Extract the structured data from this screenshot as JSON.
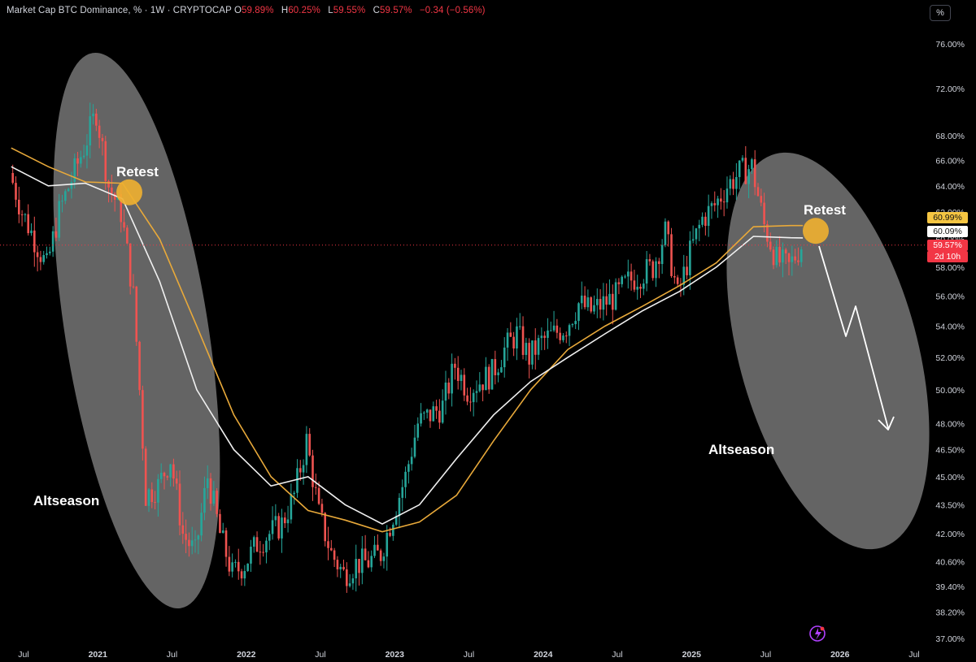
{
  "header": {
    "title": "Market Cap BTC Dominance, % · 1W · CRYPTOCAP",
    "open_label": "O",
    "open": "59.89%",
    "high_label": "H",
    "high": "60.25%",
    "low_label": "L",
    "low": "59.55%",
    "close_label": "C",
    "close": "59.57%",
    "change": "−0.34 (−0.56%)"
  },
  "scale_button": "%",
  "price_tags": {
    "ma_orange": "60.99%",
    "ma_white": "60.09%",
    "last": "59.57%",
    "countdown": "2d 10h"
  },
  "annotations": {
    "retest_left": "Retest",
    "retest_right": "Retest",
    "altseason_left": "Altseason",
    "altseason_right": "Altseason"
  },
  "colors": {
    "up": "#26a69a",
    "down": "#ef5350",
    "ma_orange": "#e8a93a",
    "ma_white": "#f0f0f0",
    "ellipse": "#8a8a8a",
    "retest_marker": "#f0b030"
  },
  "chart_data": {
    "type": "line",
    "title": "Market Cap BTC Dominance, % · 1W · CRYPTOCAP",
    "scale": "log",
    "ylim": [
      36.5,
      78.5
    ],
    "y_ticks": [
      "76.00%",
      "72.00%",
      "68.00%",
      "66.00%",
      "64.00%",
      "62.00%",
      "60.00%",
      "58.00%",
      "56.00%",
      "54.00%",
      "52.00%",
      "50.00%",
      "48.00%",
      "46.50%",
      "45.00%",
      "43.50%",
      "42.00%",
      "40.60%",
      "39.40%",
      "38.20%",
      "37.00%"
    ],
    "x_ticks": [
      "Jul",
      "2021",
      "Jul",
      "2022",
      "Jul",
      "2023",
      "Jul",
      "2024",
      "Jul",
      "2025",
      "Jul",
      "2026",
      "Jul"
    ],
    "grid": false,
    "series": [
      {
        "values_kind": "weekly closes (approx)",
        "points": [
          [
            "2020-06",
            65.0
          ],
          [
            "2020-07",
            62.0
          ],
          [
            "2020-08",
            60.0
          ],
          [
            "2020-09",
            58.0
          ],
          [
            "2020-10",
            62.0
          ],
          [
            "2020-11",
            64.5
          ],
          [
            "2020-12",
            67.0
          ],
          [
            "2021-01",
            70.0
          ],
          [
            "2021-02",
            64.0
          ],
          [
            "2021-03",
            62.0
          ],
          [
            "2021-04",
            56.0
          ],
          [
            "2021-05",
            44.0
          ],
          [
            "2021-06",
            44.5
          ],
          [
            "2021-07",
            46.0
          ],
          [
            "2021-08",
            42.0
          ],
          [
            "2021-09",
            41.0
          ],
          [
            "2021-10",
            45.0
          ],
          [
            "2021-11",
            42.0
          ],
          [
            "2021-12",
            40.0
          ],
          [
            "2022-01",
            40.5
          ],
          [
            "2022-02",
            41.5
          ],
          [
            "2022-03",
            42.0
          ],
          [
            "2022-04",
            42.5
          ],
          [
            "2022-05",
            44.0
          ],
          [
            "2022-06",
            47.0
          ],
          [
            "2022-07",
            43.0
          ],
          [
            "2022-08",
            41.0
          ],
          [
            "2022-09",
            40.0
          ],
          [
            "2022-10",
            40.5
          ],
          [
            "2022-11",
            40.6
          ],
          [
            "2022-12",
            41.0
          ],
          [
            "2023-01",
            43.0
          ],
          [
            "2023-02",
            45.0
          ],
          [
            "2023-03",
            48.0
          ],
          [
            "2023-04",
            48.5
          ],
          [
            "2023-05",
            49.0
          ],
          [
            "2023-06",
            51.5
          ],
          [
            "2023-07",
            50.0
          ],
          [
            "2023-08",
            50.5
          ],
          [
            "2023-09",
            51.0
          ],
          [
            "2023-10",
            52.5
          ],
          [
            "2023-11",
            53.5
          ],
          [
            "2023-12",
            52.0
          ],
          [
            "2024-01",
            53.0
          ],
          [
            "2024-02",
            53.5
          ],
          [
            "2024-03",
            54.0
          ],
          [
            "2024-04",
            55.5
          ],
          [
            "2024-05",
            55.0
          ],
          [
            "2024-06",
            55.5
          ],
          [
            "2024-07",
            56.0
          ],
          [
            "2024-08",
            57.0
          ],
          [
            "2024-09",
            57.5
          ],
          [
            "2024-10",
            58.0
          ],
          [
            "2024-11",
            60.5
          ],
          [
            "2024-12",
            56.0
          ],
          [
            "2025-01",
            59.0
          ],
          [
            "2025-02",
            61.5
          ],
          [
            "2025-03",
            62.5
          ],
          [
            "2025-04",
            64.0
          ],
          [
            "2025-05",
            65.0
          ],
          [
            "2025-06",
            65.5
          ],
          [
            "2025-07",
            61.0
          ],
          [
            "2025-08",
            58.5
          ],
          [
            "2025-09",
            58.0
          ],
          [
            "2025-10",
            59.57
          ]
        ]
      },
      {
        "name_color": "white-ma",
        "points": [
          [
            "2020-06",
            65.5
          ],
          [
            "2020-09",
            64.0
          ],
          [
            "2020-12",
            64.2
          ],
          [
            "2021-03",
            63.0
          ],
          [
            "2021-06",
            57.0
          ],
          [
            "2021-09",
            50.0
          ],
          [
            "2021-12",
            46.5
          ],
          [
            "2022-03",
            44.5
          ],
          [
            "2022-06",
            45.0
          ],
          [
            "2022-09",
            43.5
          ],
          [
            "2022-12",
            42.5
          ],
          [
            "2023-03",
            43.5
          ],
          [
            "2023-06",
            46.0
          ],
          [
            "2023-09",
            48.5
          ],
          [
            "2023-12",
            50.5
          ],
          [
            "2024-03",
            52.0
          ],
          [
            "2024-06",
            53.5
          ],
          [
            "2024-09",
            55.0
          ],
          [
            "2024-12",
            56.3
          ],
          [
            "2025-03",
            58.0
          ],
          [
            "2025-06",
            60.2
          ],
          [
            "2025-09",
            60.1
          ],
          [
            "2025-10",
            60.09
          ]
        ]
      },
      {
        "name_color": "orange-ma",
        "points": [
          [
            "2020-06",
            67.0
          ],
          [
            "2020-09",
            65.5
          ],
          [
            "2020-12",
            64.3
          ],
          [
            "2021-03",
            64.2
          ],
          [
            "2021-06",
            60.0
          ],
          [
            "2021-09",
            54.0
          ],
          [
            "2021-12",
            48.5
          ],
          [
            "2022-03",
            45.0
          ],
          [
            "2022-06",
            43.2
          ],
          [
            "2022-09",
            42.7
          ],
          [
            "2022-12",
            42.1
          ],
          [
            "2023-03",
            42.6
          ],
          [
            "2023-06",
            44.0
          ],
          [
            "2023-09",
            47.0
          ],
          [
            "2023-12",
            50.0
          ],
          [
            "2024-03",
            52.5
          ],
          [
            "2024-06",
            54.0
          ],
          [
            "2024-09",
            55.3
          ],
          [
            "2024-12",
            56.7
          ],
          [
            "2025-03",
            58.3
          ],
          [
            "2025-06",
            60.9
          ],
          [
            "2025-09",
            60.99
          ],
          [
            "2025-10",
            60.99
          ]
        ]
      }
    ]
  }
}
